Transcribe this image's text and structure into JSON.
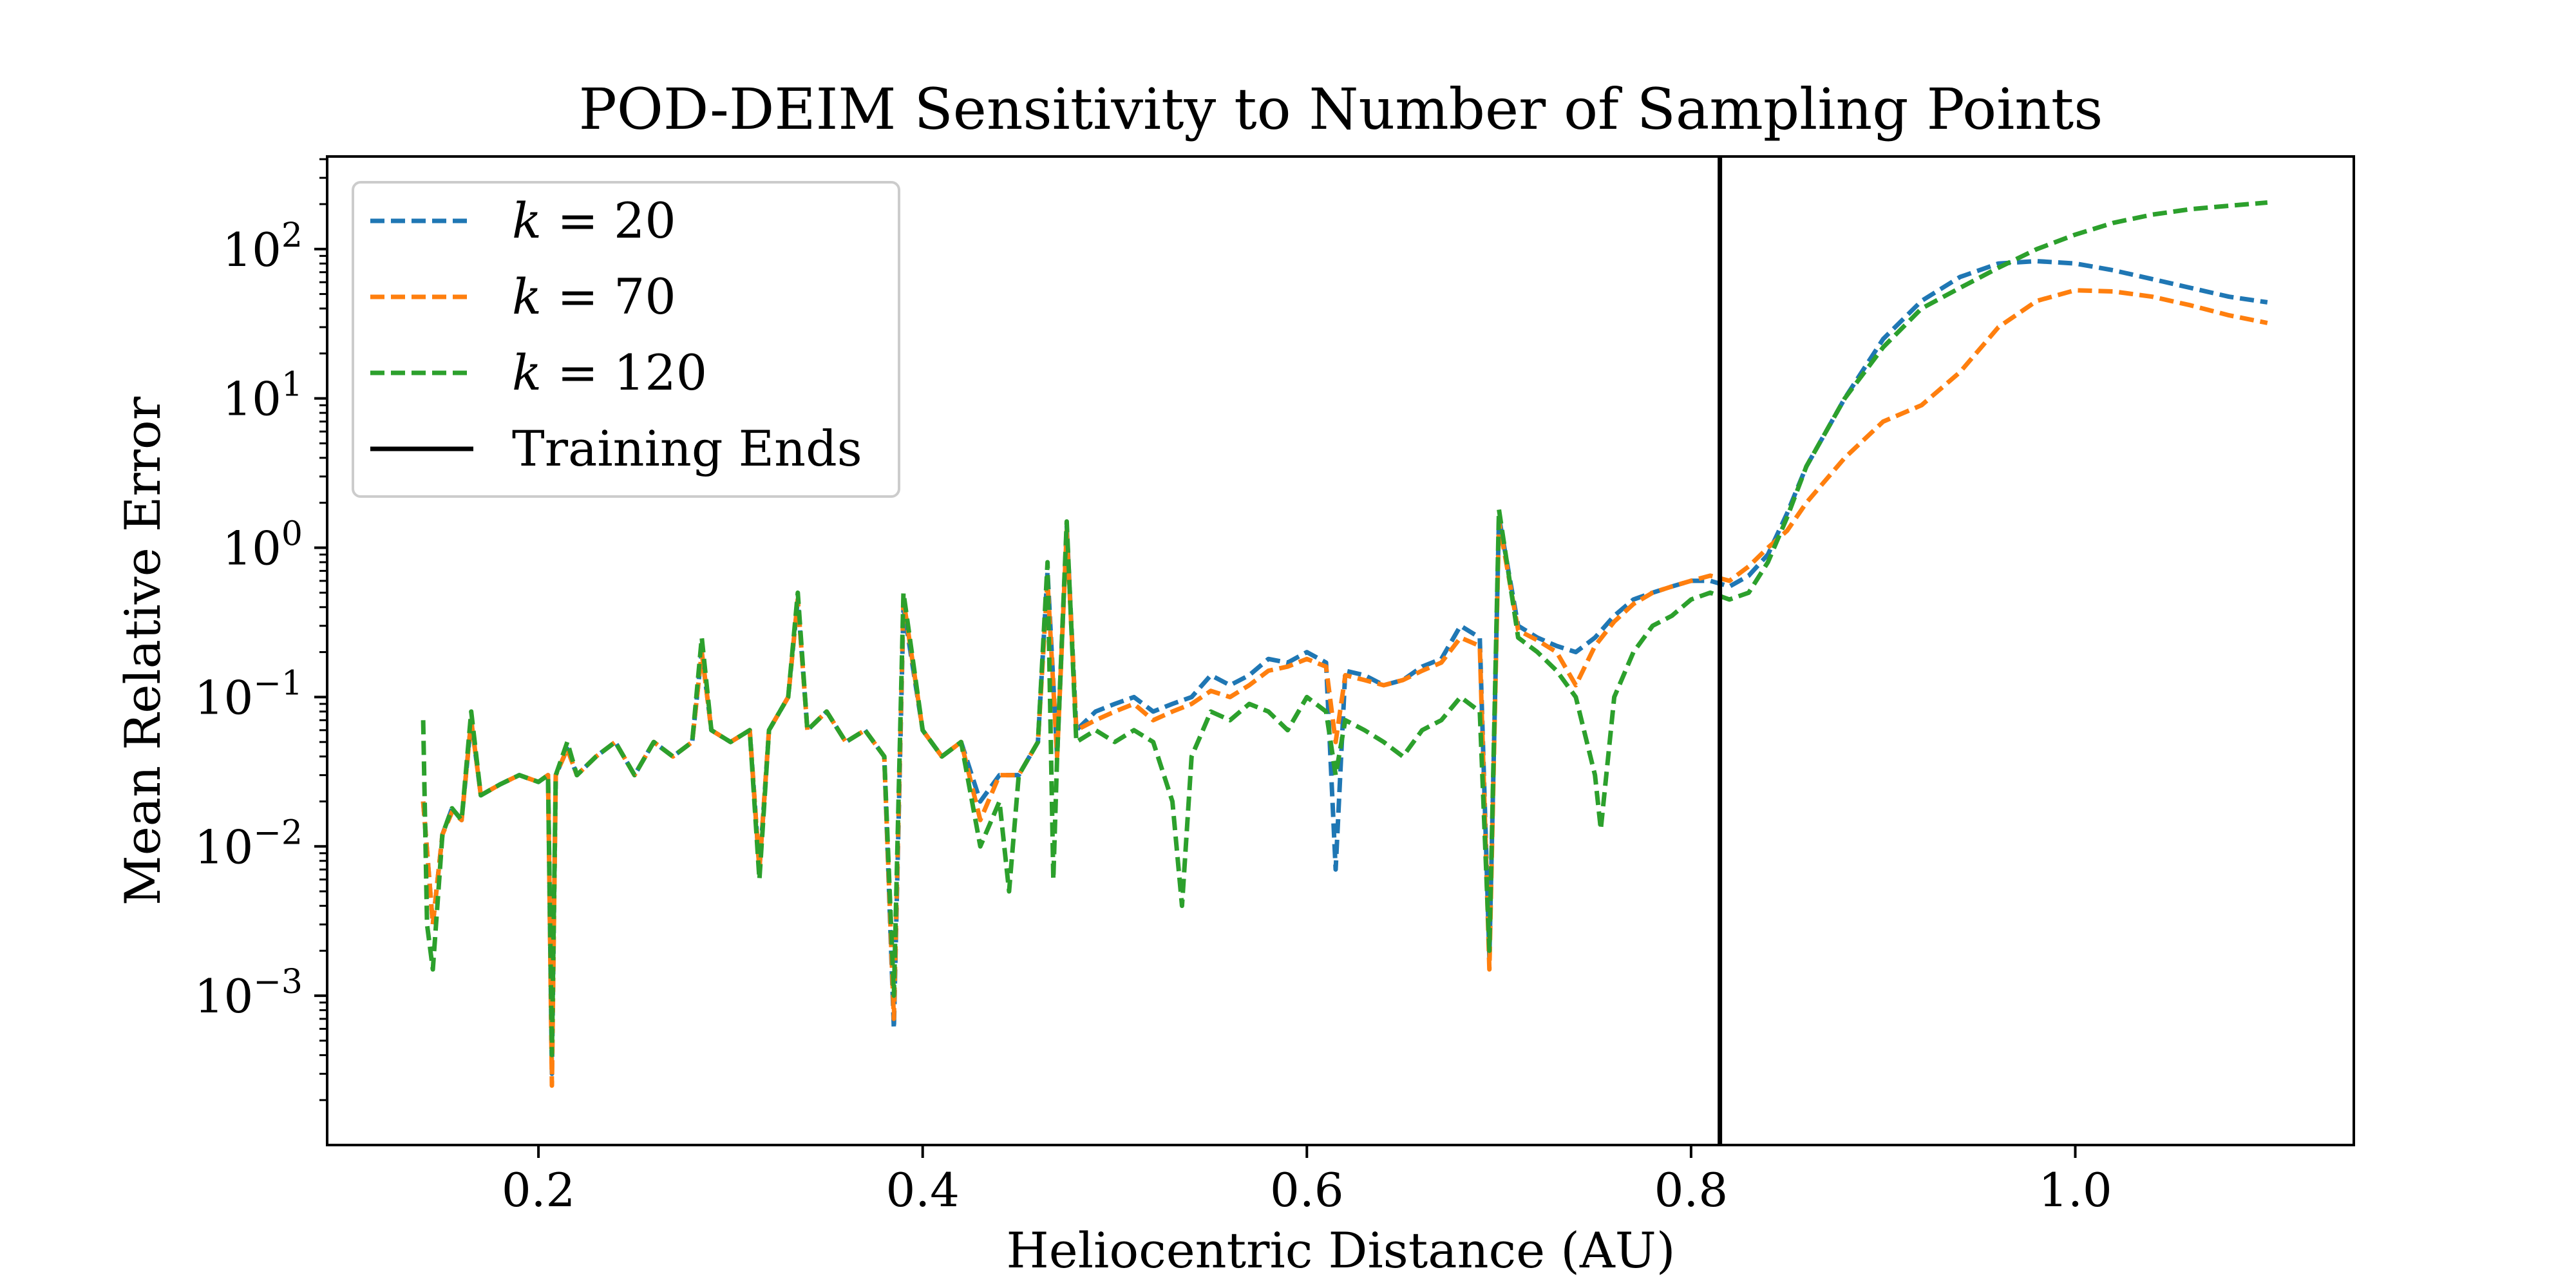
{
  "chart_data": {
    "type": "line",
    "title": "POD-DEIM Sensitivity to Number of Sampling Points",
    "xlabel": "Heliocentric Distance (AU)",
    "ylabel": "Mean Relative Error",
    "xlim": [
      0.09,
      1.145
    ],
    "ylim_log10": [
      -4.0,
      2.62
    ],
    "yscale": "log",
    "grid": false,
    "legend_position": "upper-left",
    "x_ticks": [
      {
        "value": 0.2,
        "label": "0.2"
      },
      {
        "value": 0.4,
        "label": "0.4"
      },
      {
        "value": 0.6,
        "label": "0.6"
      },
      {
        "value": 0.8,
        "label": "0.8"
      },
      {
        "value": 1.0,
        "label": "1.0"
      }
    ],
    "y_ticks": [
      {
        "exp": 2,
        "base": "10",
        "sup": "2"
      },
      {
        "exp": 1,
        "base": "10",
        "sup": "1"
      },
      {
        "exp": 0,
        "base": "10",
        "sup": "0"
      },
      {
        "exp": -1,
        "base": "10",
        "sup": "−1"
      },
      {
        "exp": -2,
        "base": "10",
        "sup": "−2"
      },
      {
        "exp": -3,
        "base": "10",
        "sup": "−3"
      }
    ],
    "training_end_x": 0.815,
    "series": [
      {
        "name": "k = 20",
        "name_prefix": "k",
        "name_suffix": " = 20",
        "color": "#1f77b4",
        "points": [
          [
            0.14,
            0.02
          ],
          [
            0.145,
            0.003
          ],
          [
            0.15,
            0.012
          ],
          [
            0.155,
            0.018
          ],
          [
            0.16,
            0.015
          ],
          [
            0.165,
            0.07
          ],
          [
            0.17,
            0.022
          ],
          [
            0.18,
            0.026
          ],
          [
            0.19,
            0.03
          ],
          [
            0.2,
            0.027
          ],
          [
            0.205,
            0.03
          ],
          [
            0.207,
            0.0003
          ],
          [
            0.209,
            0.03
          ],
          [
            0.215,
            0.045
          ],
          [
            0.22,
            0.03
          ],
          [
            0.23,
            0.04
          ],
          [
            0.24,
            0.05
          ],
          [
            0.25,
            0.03
          ],
          [
            0.26,
            0.05
          ],
          [
            0.27,
            0.04
          ],
          [
            0.28,
            0.05
          ],
          [
            0.285,
            0.2
          ],
          [
            0.29,
            0.06
          ],
          [
            0.3,
            0.05
          ],
          [
            0.31,
            0.06
          ],
          [
            0.315,
            0.007
          ],
          [
            0.32,
            0.06
          ],
          [
            0.33,
            0.1
          ],
          [
            0.335,
            0.45
          ],
          [
            0.34,
            0.06
          ],
          [
            0.35,
            0.08
          ],
          [
            0.36,
            0.05
          ],
          [
            0.37,
            0.06
          ],
          [
            0.38,
            0.04
          ],
          [
            0.385,
            0.0006
          ],
          [
            0.39,
            0.4
          ],
          [
            0.4,
            0.06
          ],
          [
            0.41,
            0.04
          ],
          [
            0.42,
            0.05
          ],
          [
            0.43,
            0.02
          ],
          [
            0.44,
            0.03
          ],
          [
            0.45,
            0.03
          ],
          [
            0.46,
            0.05
          ],
          [
            0.465,
            0.7
          ],
          [
            0.47,
            0.04
          ],
          [
            0.475,
            1.4
          ],
          [
            0.48,
            0.06
          ],
          [
            0.49,
            0.08
          ],
          [
            0.5,
            0.09
          ],
          [
            0.51,
            0.1
          ],
          [
            0.52,
            0.08
          ],
          [
            0.53,
            0.09
          ],
          [
            0.54,
            0.1
          ],
          [
            0.55,
            0.14
          ],
          [
            0.56,
            0.12
          ],
          [
            0.57,
            0.14
          ],
          [
            0.58,
            0.18
          ],
          [
            0.59,
            0.17
          ],
          [
            0.6,
            0.2
          ],
          [
            0.61,
            0.17
          ],
          [
            0.615,
            0.007
          ],
          [
            0.62,
            0.15
          ],
          [
            0.63,
            0.14
          ],
          [
            0.64,
            0.12
          ],
          [
            0.65,
            0.13
          ],
          [
            0.66,
            0.16
          ],
          [
            0.67,
            0.18
          ],
          [
            0.68,
            0.3
          ],
          [
            0.69,
            0.25
          ],
          [
            0.695,
            0.0018
          ],
          [
            0.7,
            1.6
          ],
          [
            0.71,
            0.3
          ],
          [
            0.72,
            0.25
          ],
          [
            0.73,
            0.22
          ],
          [
            0.74,
            0.2
          ],
          [
            0.75,
            0.25
          ],
          [
            0.76,
            0.35
          ],
          [
            0.77,
            0.45
          ],
          [
            0.78,
            0.5
          ],
          [
            0.79,
            0.55
          ],
          [
            0.8,
            0.6
          ],
          [
            0.81,
            0.6
          ],
          [
            0.82,
            0.55
          ],
          [
            0.83,
            0.65
          ],
          [
            0.84,
            0.9
          ],
          [
            0.85,
            1.7
          ],
          [
            0.86,
            3.5
          ],
          [
            0.88,
            10
          ],
          [
            0.9,
            25
          ],
          [
            0.92,
            45
          ],
          [
            0.94,
            65
          ],
          [
            0.96,
            80
          ],
          [
            0.98,
            83
          ],
          [
            1.0,
            80
          ],
          [
            1.02,
            72
          ],
          [
            1.04,
            63
          ],
          [
            1.06,
            55
          ],
          [
            1.08,
            48
          ],
          [
            1.1,
            44
          ]
        ]
      },
      {
        "name": "k = 70",
        "name_prefix": "k",
        "name_suffix": " = 70",
        "color": "#ff7f0e",
        "points": [
          [
            0.14,
            0.02
          ],
          [
            0.145,
            0.003
          ],
          [
            0.15,
            0.012
          ],
          [
            0.155,
            0.017
          ],
          [
            0.16,
            0.015
          ],
          [
            0.165,
            0.07
          ],
          [
            0.17,
            0.022
          ],
          [
            0.18,
            0.026
          ],
          [
            0.19,
            0.03
          ],
          [
            0.2,
            0.027
          ],
          [
            0.205,
            0.03
          ],
          [
            0.207,
            0.00025
          ],
          [
            0.209,
            0.03
          ],
          [
            0.215,
            0.045
          ],
          [
            0.22,
            0.03
          ],
          [
            0.23,
            0.04
          ],
          [
            0.24,
            0.05
          ],
          [
            0.25,
            0.03
          ],
          [
            0.26,
            0.05
          ],
          [
            0.27,
            0.04
          ],
          [
            0.28,
            0.05
          ],
          [
            0.285,
            0.2
          ],
          [
            0.29,
            0.06
          ],
          [
            0.3,
            0.05
          ],
          [
            0.31,
            0.06
          ],
          [
            0.315,
            0.007
          ],
          [
            0.32,
            0.06
          ],
          [
            0.33,
            0.1
          ],
          [
            0.335,
            0.45
          ],
          [
            0.34,
            0.06
          ],
          [
            0.35,
            0.08
          ],
          [
            0.36,
            0.05
          ],
          [
            0.37,
            0.06
          ],
          [
            0.38,
            0.04
          ],
          [
            0.385,
            0.0007
          ],
          [
            0.39,
            0.45
          ],
          [
            0.4,
            0.06
          ],
          [
            0.41,
            0.04
          ],
          [
            0.42,
            0.05
          ],
          [
            0.43,
            0.015
          ],
          [
            0.44,
            0.03
          ],
          [
            0.45,
            0.03
          ],
          [
            0.46,
            0.05
          ],
          [
            0.465,
            0.6
          ],
          [
            0.47,
            0.04
          ],
          [
            0.475,
            1.3
          ],
          [
            0.48,
            0.06
          ],
          [
            0.49,
            0.07
          ],
          [
            0.5,
            0.08
          ],
          [
            0.51,
            0.09
          ],
          [
            0.52,
            0.07
          ],
          [
            0.53,
            0.08
          ],
          [
            0.54,
            0.09
          ],
          [
            0.55,
            0.11
          ],
          [
            0.56,
            0.1
          ],
          [
            0.57,
            0.12
          ],
          [
            0.58,
            0.15
          ],
          [
            0.59,
            0.16
          ],
          [
            0.6,
            0.18
          ],
          [
            0.61,
            0.16
          ],
          [
            0.615,
            0.05
          ],
          [
            0.62,
            0.14
          ],
          [
            0.63,
            0.13
          ],
          [
            0.64,
            0.12
          ],
          [
            0.65,
            0.13
          ],
          [
            0.66,
            0.15
          ],
          [
            0.67,
            0.17
          ],
          [
            0.68,
            0.25
          ],
          [
            0.69,
            0.22
          ],
          [
            0.695,
            0.0015
          ],
          [
            0.7,
            1.5
          ],
          [
            0.71,
            0.28
          ],
          [
            0.72,
            0.24
          ],
          [
            0.73,
            0.2
          ],
          [
            0.74,
            0.12
          ],
          [
            0.75,
            0.22
          ],
          [
            0.76,
            0.32
          ],
          [
            0.77,
            0.42
          ],
          [
            0.78,
            0.5
          ],
          [
            0.79,
            0.55
          ],
          [
            0.8,
            0.6
          ],
          [
            0.81,
            0.65
          ],
          [
            0.82,
            0.6
          ],
          [
            0.83,
            0.75
          ],
          [
            0.84,
            1.0
          ],
          [
            0.85,
            1.3
          ],
          [
            0.86,
            2.0
          ],
          [
            0.88,
            4.0
          ],
          [
            0.9,
            7.0
          ],
          [
            0.92,
            9.0
          ],
          [
            0.94,
            15
          ],
          [
            0.96,
            30
          ],
          [
            0.98,
            45
          ],
          [
            1.0,
            53
          ],
          [
            1.02,
            52
          ],
          [
            1.04,
            48
          ],
          [
            1.06,
            42
          ],
          [
            1.08,
            36
          ],
          [
            1.1,
            32
          ]
        ]
      },
      {
        "name": "k = 120",
        "name_prefix": "k",
        "name_suffix": " = 120",
        "color": "#2ca02c",
        "points": [
          [
            0.14,
            0.07
          ],
          [
            0.142,
            0.003
          ],
          [
            0.145,
            0.0015
          ],
          [
            0.15,
            0.012
          ],
          [
            0.155,
            0.018
          ],
          [
            0.16,
            0.015
          ],
          [
            0.165,
            0.08
          ],
          [
            0.17,
            0.022
          ],
          [
            0.18,
            0.026
          ],
          [
            0.19,
            0.03
          ],
          [
            0.2,
            0.027
          ],
          [
            0.205,
            0.03
          ],
          [
            0.207,
            0.0004
          ],
          [
            0.209,
            0.03
          ],
          [
            0.215,
            0.05
          ],
          [
            0.22,
            0.03
          ],
          [
            0.23,
            0.04
          ],
          [
            0.24,
            0.05
          ],
          [
            0.25,
            0.03
          ],
          [
            0.26,
            0.05
          ],
          [
            0.27,
            0.04
          ],
          [
            0.28,
            0.05
          ],
          [
            0.285,
            0.25
          ],
          [
            0.29,
            0.06
          ],
          [
            0.3,
            0.05
          ],
          [
            0.31,
            0.06
          ],
          [
            0.315,
            0.006
          ],
          [
            0.32,
            0.06
          ],
          [
            0.33,
            0.1
          ],
          [
            0.335,
            0.5
          ],
          [
            0.34,
            0.06
          ],
          [
            0.35,
            0.08
          ],
          [
            0.36,
            0.05
          ],
          [
            0.37,
            0.06
          ],
          [
            0.38,
            0.04
          ],
          [
            0.385,
            0.001
          ],
          [
            0.39,
            0.5
          ],
          [
            0.4,
            0.06
          ],
          [
            0.41,
            0.04
          ],
          [
            0.42,
            0.05
          ],
          [
            0.43,
            0.01
          ],
          [
            0.44,
            0.02
          ],
          [
            0.445,
            0.005
          ],
          [
            0.45,
            0.03
          ],
          [
            0.46,
            0.05
          ],
          [
            0.465,
            0.8
          ],
          [
            0.468,
            0.006
          ],
          [
            0.47,
            0.04
          ],
          [
            0.475,
            1.5
          ],
          [
            0.48,
            0.05
          ],
          [
            0.49,
            0.06
          ],
          [
            0.5,
            0.05
          ],
          [
            0.51,
            0.06
          ],
          [
            0.52,
            0.05
          ],
          [
            0.53,
            0.02
          ],
          [
            0.535,
            0.004
          ],
          [
            0.54,
            0.04
          ],
          [
            0.55,
            0.08
          ],
          [
            0.56,
            0.07
          ],
          [
            0.57,
            0.09
          ],
          [
            0.58,
            0.08
          ],
          [
            0.59,
            0.06
          ],
          [
            0.6,
            0.1
          ],
          [
            0.61,
            0.08
          ],
          [
            0.615,
            0.03
          ],
          [
            0.62,
            0.07
          ],
          [
            0.63,
            0.06
          ],
          [
            0.64,
            0.05
          ],
          [
            0.65,
            0.04
          ],
          [
            0.66,
            0.06
          ],
          [
            0.67,
            0.07
          ],
          [
            0.68,
            0.1
          ],
          [
            0.69,
            0.08
          ],
          [
            0.695,
            0.002
          ],
          [
            0.7,
            1.8
          ],
          [
            0.71,
            0.25
          ],
          [
            0.72,
            0.2
          ],
          [
            0.73,
            0.15
          ],
          [
            0.74,
            0.1
          ],
          [
            0.75,
            0.03
          ],
          [
            0.753,
            0.013
          ],
          [
            0.76,
            0.1
          ],
          [
            0.77,
            0.2
          ],
          [
            0.78,
            0.3
          ],
          [
            0.79,
            0.35
          ],
          [
            0.8,
            0.45
          ],
          [
            0.81,
            0.5
          ],
          [
            0.82,
            0.45
          ],
          [
            0.83,
            0.5
          ],
          [
            0.84,
            0.8
          ],
          [
            0.85,
            1.6
          ],
          [
            0.86,
            3.5
          ],
          [
            0.88,
            10
          ],
          [
            0.9,
            22
          ],
          [
            0.92,
            40
          ],
          [
            0.94,
            55
          ],
          [
            0.96,
            75
          ],
          [
            0.98,
            100
          ],
          [
            1.0,
            125
          ],
          [
            1.02,
            150
          ],
          [
            1.04,
            170
          ],
          [
            1.06,
            185
          ],
          [
            1.08,
            195
          ],
          [
            1.1,
            205
          ]
        ]
      }
    ],
    "legend_training_label": "Training Ends",
    "training_line_color": "#000000"
  }
}
